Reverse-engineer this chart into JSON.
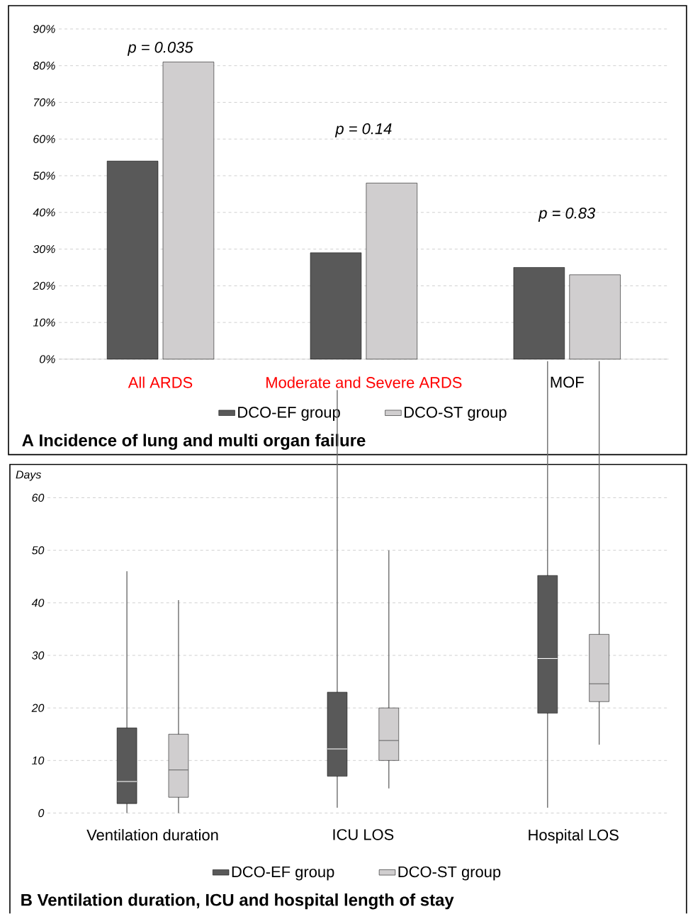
{
  "chart_data": [
    {
      "type": "bar",
      "title": "A Incidence of lung and multi organ failure",
      "categories": [
        "All ARDS",
        "Moderate and Severe ARDS",
        "MOF"
      ],
      "series": [
        {
          "name": "DCO-EF group",
          "color": "#595959",
          "values": [
            54,
            29,
            25
          ]
        },
        {
          "name": "DCO-ST group",
          "color": "#d0cecf",
          "values": [
            81,
            48,
            23
          ]
        }
      ],
      "ylim": [
        0,
        90
      ],
      "yticks": [
        {
          "value": 0,
          "label": "0%"
        },
        {
          "value": 10,
          "label": "10%"
        },
        {
          "value": 20,
          "label": "20%"
        },
        {
          "value": 30,
          "label": "30%"
        },
        {
          "value": 40,
          "label": "40%"
        },
        {
          "value": 50,
          "label": "50%"
        },
        {
          "value": 60,
          "label": "60%"
        },
        {
          "value": 70,
          "label": "70%"
        },
        {
          "value": 80,
          "label": "80%"
        },
        {
          "value": 90,
          "label": "90%"
        }
      ],
      "grid": "y",
      "legend": "bottom",
      "annotations": [
        "p = 0.035",
        "p = 0.14",
        "p = 0.83"
      ]
    },
    {
      "type": "box",
      "title": "B Ventilation duration, ICU and hospital length of stay",
      "ylabel": "Days",
      "categories": [
        "Ventilation duration",
        "ICU LOS",
        "Hospital LOS"
      ],
      "series": [
        {
          "name": "DCO-EF group",
          "color": "#595959",
          "boxes": [
            {
              "low": 0,
              "q1": 1.8,
              "median": 6,
              "q3": 16.2,
              "high": 46
            },
            {
              "low": 1,
              "q1": 7,
              "median": 12.2,
              "q3": 23,
              "high": 80.5
            },
            {
              "low": 1,
              "q1": 19,
              "median": 29.4,
              "q3": 45.2,
              "high": 86
            }
          ]
        },
        {
          "name": "DCO-ST group",
          "color": "#d0cecf",
          "boxes": [
            {
              "low": 0,
              "q1": 3,
              "median": 8.2,
              "q3": 15,
              "high": 40.5
            },
            {
              "low": 4.7,
              "q1": 10,
              "median": 13.8,
              "q3": 20,
              "high": 50
            },
            {
              "low": 13,
              "q1": 21.2,
              "median": 24.6,
              "q3": 34,
              "high": 86
            }
          ]
        }
      ],
      "ylim": [
        0,
        86
      ],
      "yticks": [
        0,
        10,
        20,
        30,
        40,
        50,
        60
      ],
      "grid": "y",
      "legend": "bottom"
    }
  ]
}
